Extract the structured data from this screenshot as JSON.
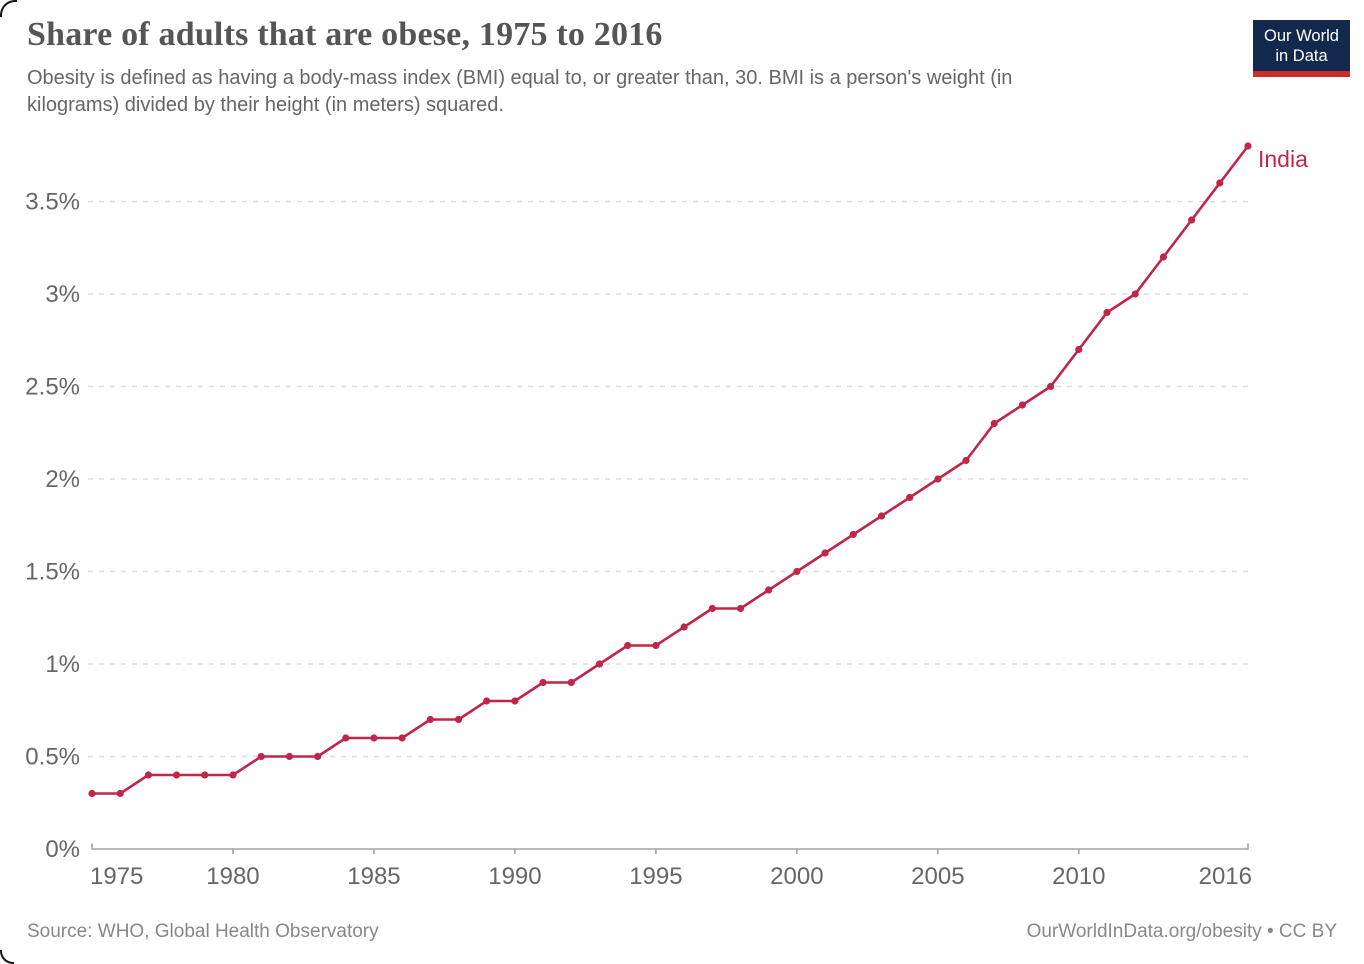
{
  "header": {
    "title": "Share of adults that are obese, 1975 to 2016",
    "subtitle_line1": "Obesity is defined as having a body-mass index (BMI) equal to, or greater than, 30. BMI is a person's weight (in",
    "subtitle_line2": "kilograms) divided by their height (in meters) squared."
  },
  "logo": {
    "line1": "Our World",
    "line2": "in Data",
    "bg_color": "#12294d",
    "bar_color": "#cb2d24"
  },
  "chart_data": {
    "type": "line",
    "title": "Share of adults that are obese, 1975 to 2016",
    "xlabel": "",
    "ylabel": "",
    "xlim": [
      1975,
      2016
    ],
    "ylim": [
      0,
      3.8
    ],
    "grid": "horizontal-dashed",
    "legend_position": "end-of-line-label",
    "x_ticks": [
      1975,
      1980,
      1985,
      1990,
      1995,
      2000,
      2005,
      2010,
      2016
    ],
    "y_tick_values": [
      0,
      0.5,
      1,
      1.5,
      2,
      2.5,
      3,
      3.5
    ],
    "y_tick_labels": [
      "0%",
      "0.5%",
      "1%",
      "1.5%",
      "2%",
      "2.5%",
      "3%",
      "3.5%"
    ],
    "series": [
      {
        "name": "India",
        "color": "#bf2649",
        "x": [
          1975,
          1976,
          1977,
          1978,
          1979,
          1980,
          1981,
          1982,
          1983,
          1984,
          1985,
          1986,
          1987,
          1988,
          1989,
          1990,
          1991,
          1992,
          1993,
          1994,
          1995,
          1996,
          1997,
          1998,
          1999,
          2000,
          2001,
          2002,
          2003,
          2004,
          2005,
          2006,
          2007,
          2008,
          2009,
          2010,
          2011,
          2012,
          2013,
          2014,
          2015,
          2016
        ],
        "values": [
          0.3,
          0.3,
          0.4,
          0.4,
          0.4,
          0.4,
          0.5,
          0.5,
          0.5,
          0.6,
          0.6,
          0.6,
          0.7,
          0.7,
          0.8,
          0.8,
          0.9,
          0.9,
          1.0,
          1.1,
          1.1,
          1.2,
          1.3,
          1.3,
          1.4,
          1.5,
          1.6,
          1.7,
          1.8,
          1.9,
          2.0,
          2.1,
          2.3,
          2.4,
          2.5,
          2.7,
          2.9,
          3.0,
          3.2,
          3.4,
          3.6,
          3.8
        ]
      }
    ],
    "style": {
      "grid_color": "#dcdcdc",
      "axis_color": "#a3a3a3",
      "tick_label_color": "#666666"
    }
  },
  "footer": {
    "source": "Source: WHO, Global Health Observatory",
    "credit": "OurWorldInData.org/obesity • CC BY"
  }
}
